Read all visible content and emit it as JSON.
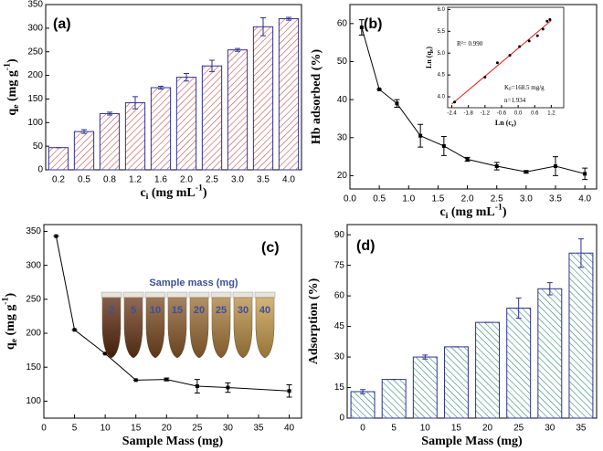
{
  "chart_data": [
    {
      "type": "bar",
      "panel_label": "(a)",
      "categories": [
        "0.2",
        "0.5",
        "0.8",
        "1.2",
        "1.6",
        "2.0",
        "2.5",
        "3.0",
        "3.5",
        "4.0"
      ],
      "values": [
        47,
        81,
        119,
        142,
        174,
        196,
        220,
        254,
        303,
        320
      ],
      "errors": [
        0,
        4,
        3,
        13,
        3,
        8,
        12,
        3,
        19,
        3
      ],
      "color": "#c0504d",
      "edgecolor": "#2e3192",
      "hatch": "/",
      "ylim": [
        0,
        350
      ],
      "yticks": [
        0,
        50,
        100,
        150,
        200,
        250,
        300,
        350
      ],
      "xlabel": [
        "c",
        "i",
        " (mg mL",
        "-1",
        ")"
      ],
      "ylabel": [
        "q",
        "e",
        " (mg g",
        "-1",
        ")"
      ]
    },
    {
      "type": "line",
      "panel_label": "(b)",
      "x": [
        0.2,
        0.5,
        0.8,
        1.2,
        1.6,
        2.0,
        2.5,
        3.0,
        3.5,
        4.0
      ],
      "values": [
        59,
        42.7,
        39,
        30.5,
        27.8,
        24.3,
        22.5,
        21,
        22.5,
        20.5
      ],
      "errors": [
        2,
        0,
        1,
        3,
        2.5,
        0.5,
        1,
        0.3,
        2.5,
        1.5
      ],
      "color": "#000000",
      "xlim": [
        0,
        4.2
      ],
      "xticks": [
        {
          "value": 0,
          "label": "0.0"
        },
        0.5,
        {
          "value": 1,
          "label": "1.0"
        },
        1.5,
        {
          "value": 2,
          "label": "2.0"
        },
        2.5,
        {
          "value": 3,
          "label": "3.0"
        },
        3.5,
        {
          "value": 4,
          "label": "4.0"
        }
      ],
      "ylim": [
        16.5,
        65
      ],
      "yticks": [
        20,
        30,
        40,
        50,
        60
      ],
      "xlabel": [
        "c",
        "i",
        " (mg mL",
        "-1",
        ")"
      ],
      "ylabel": [
        "Hb adsorbed (%)"
      ]
    },
    {
      "type": "line",
      "panel_label": "(c)",
      "x": [
        2,
        5,
        10,
        15,
        20,
        25,
        30,
        40
      ],
      "values": [
        343,
        205,
        170,
        131,
        132,
        122,
        120,
        115
      ],
      "errors": [
        0,
        0,
        0,
        0,
        2,
        10,
        7,
        9
      ],
      "color": "#000000",
      "xlim": [
        0,
        42
      ],
      "xticks": [
        0,
        5,
        10,
        15,
        20,
        25,
        30,
        35,
        40
      ],
      "ylim": [
        75,
        360
      ],
      "yticks": [
        100,
        150,
        200,
        250,
        300,
        350
      ],
      "xlabel": [
        "Sample Mass (mg)"
      ],
      "ylabel": [
        "q",
        "e",
        " (mg g",
        "-1",
        ")"
      ],
      "inset": {
        "title": "Sample mass (mg)",
        "labels": [
          "2",
          "5",
          "10",
          "15",
          "20",
          "25",
          "30",
          "40"
        ]
      }
    },
    {
      "type": "bar",
      "panel_label": "(d)",
      "categories": [
        "0",
        "5",
        "10",
        "15",
        "20",
        "25",
        "30",
        "35"
      ],
      "values": [
        13,
        19,
        30,
        35,
        47,
        54,
        63.5,
        81
      ],
      "errors": [
        1,
        0,
        1,
        0,
        0,
        5,
        3,
        7
      ],
      "color": "#2a8a6a",
      "edgecolor": "#2e3192",
      "hatch": "\\",
      "ylim": [
        0,
        95
      ],
      "yticks": [
        0,
        15,
        30,
        45,
        60,
        75,
        90
      ],
      "xlabel": [
        "Sample Mass (mg)"
      ],
      "ylabel": [
        "Adsorption (%)"
      ]
    },
    {
      "type": "scatter",
      "x": [
        -2.3,
        -1.2,
        -0.75,
        -0.3,
        0.05,
        0.4,
        0.7,
        0.9,
        1.05,
        1.15
      ],
      "values": [
        3.88,
        4.45,
        4.78,
        4.95,
        5.15,
        5.28,
        5.4,
        5.55,
        5.73,
        5.77
      ],
      "color": "#000000",
      "fit": true,
      "fit_color": "#e41a1c",
      "xlim": [
        -2.55,
        1.65
      ],
      "xticks": [
        -2.4,
        -1.8,
        -1.2,
        -0.6,
        {
          "value": 0,
          "label": "0.0"
        },
        0.6,
        1.2
      ],
      "ylim": [
        3.75,
        6.05
      ],
      "yticks": [
        {
          "value": 4,
          "label": "4.0"
        },
        4.5,
        {
          "value": 5,
          "label": "5.0"
        },
        5.5,
        {
          "value": 6,
          "label": "6.0"
        }
      ],
      "xlabel": [
        "Ln (c",
        "e",
        ")"
      ],
      "ylabel": [
        "Ln (q",
        "e",
        ")"
      ],
      "annotations": [
        [
          "R²= 0.990"
        ],
        [
          "K",
          "F",
          "=168.5 mg/g"
        ],
        [
          "n=1.934"
        ]
      ]
    }
  ]
}
